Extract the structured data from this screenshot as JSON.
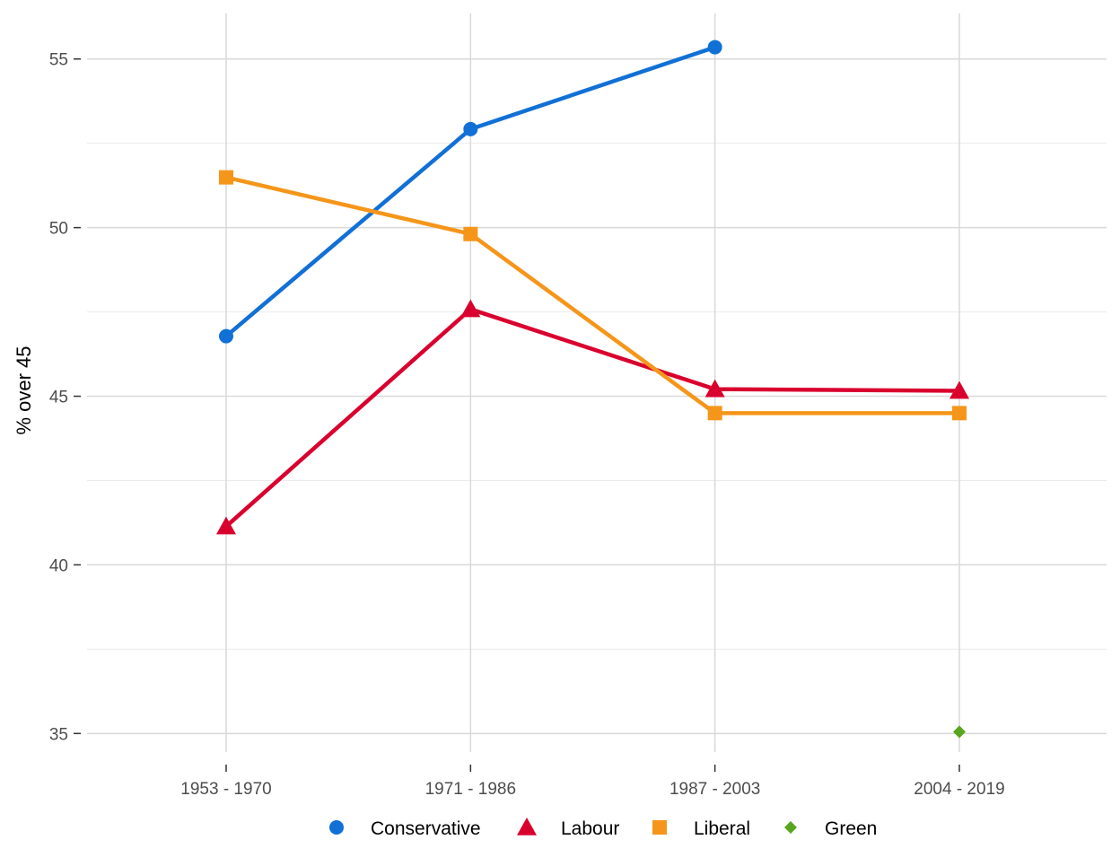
{
  "chart_data": {
    "type": "line",
    "title": "",
    "xlabel": "",
    "ylabel": "% over 45",
    "categories": [
      "1953 - 1970",
      "1971 - 1986",
      "1987 - 2003",
      "2004 - 2019"
    ],
    "ylim": [
      34.45,
      56.35
    ],
    "yticks": [
      35,
      40,
      45,
      50,
      55
    ],
    "grid": true,
    "legend_position": "bottom",
    "series": [
      {
        "name": "Conservative",
        "color": "#1170d6",
        "shape": "circle",
        "values": [
          46.78,
          52.92,
          55.35,
          null
        ]
      },
      {
        "name": "Labour",
        "color": "#d9002e",
        "shape": "triangle",
        "values": [
          41.14,
          47.58,
          45.21,
          45.16
        ]
      },
      {
        "name": "Liberal",
        "color": "#f5961a",
        "shape": "square",
        "values": [
          51.49,
          49.81,
          44.5,
          44.5
        ]
      },
      {
        "name": "Green",
        "color": "#5aa51e",
        "shape": "diamond",
        "values": [
          null,
          null,
          null,
          35.05
        ]
      }
    ]
  }
}
